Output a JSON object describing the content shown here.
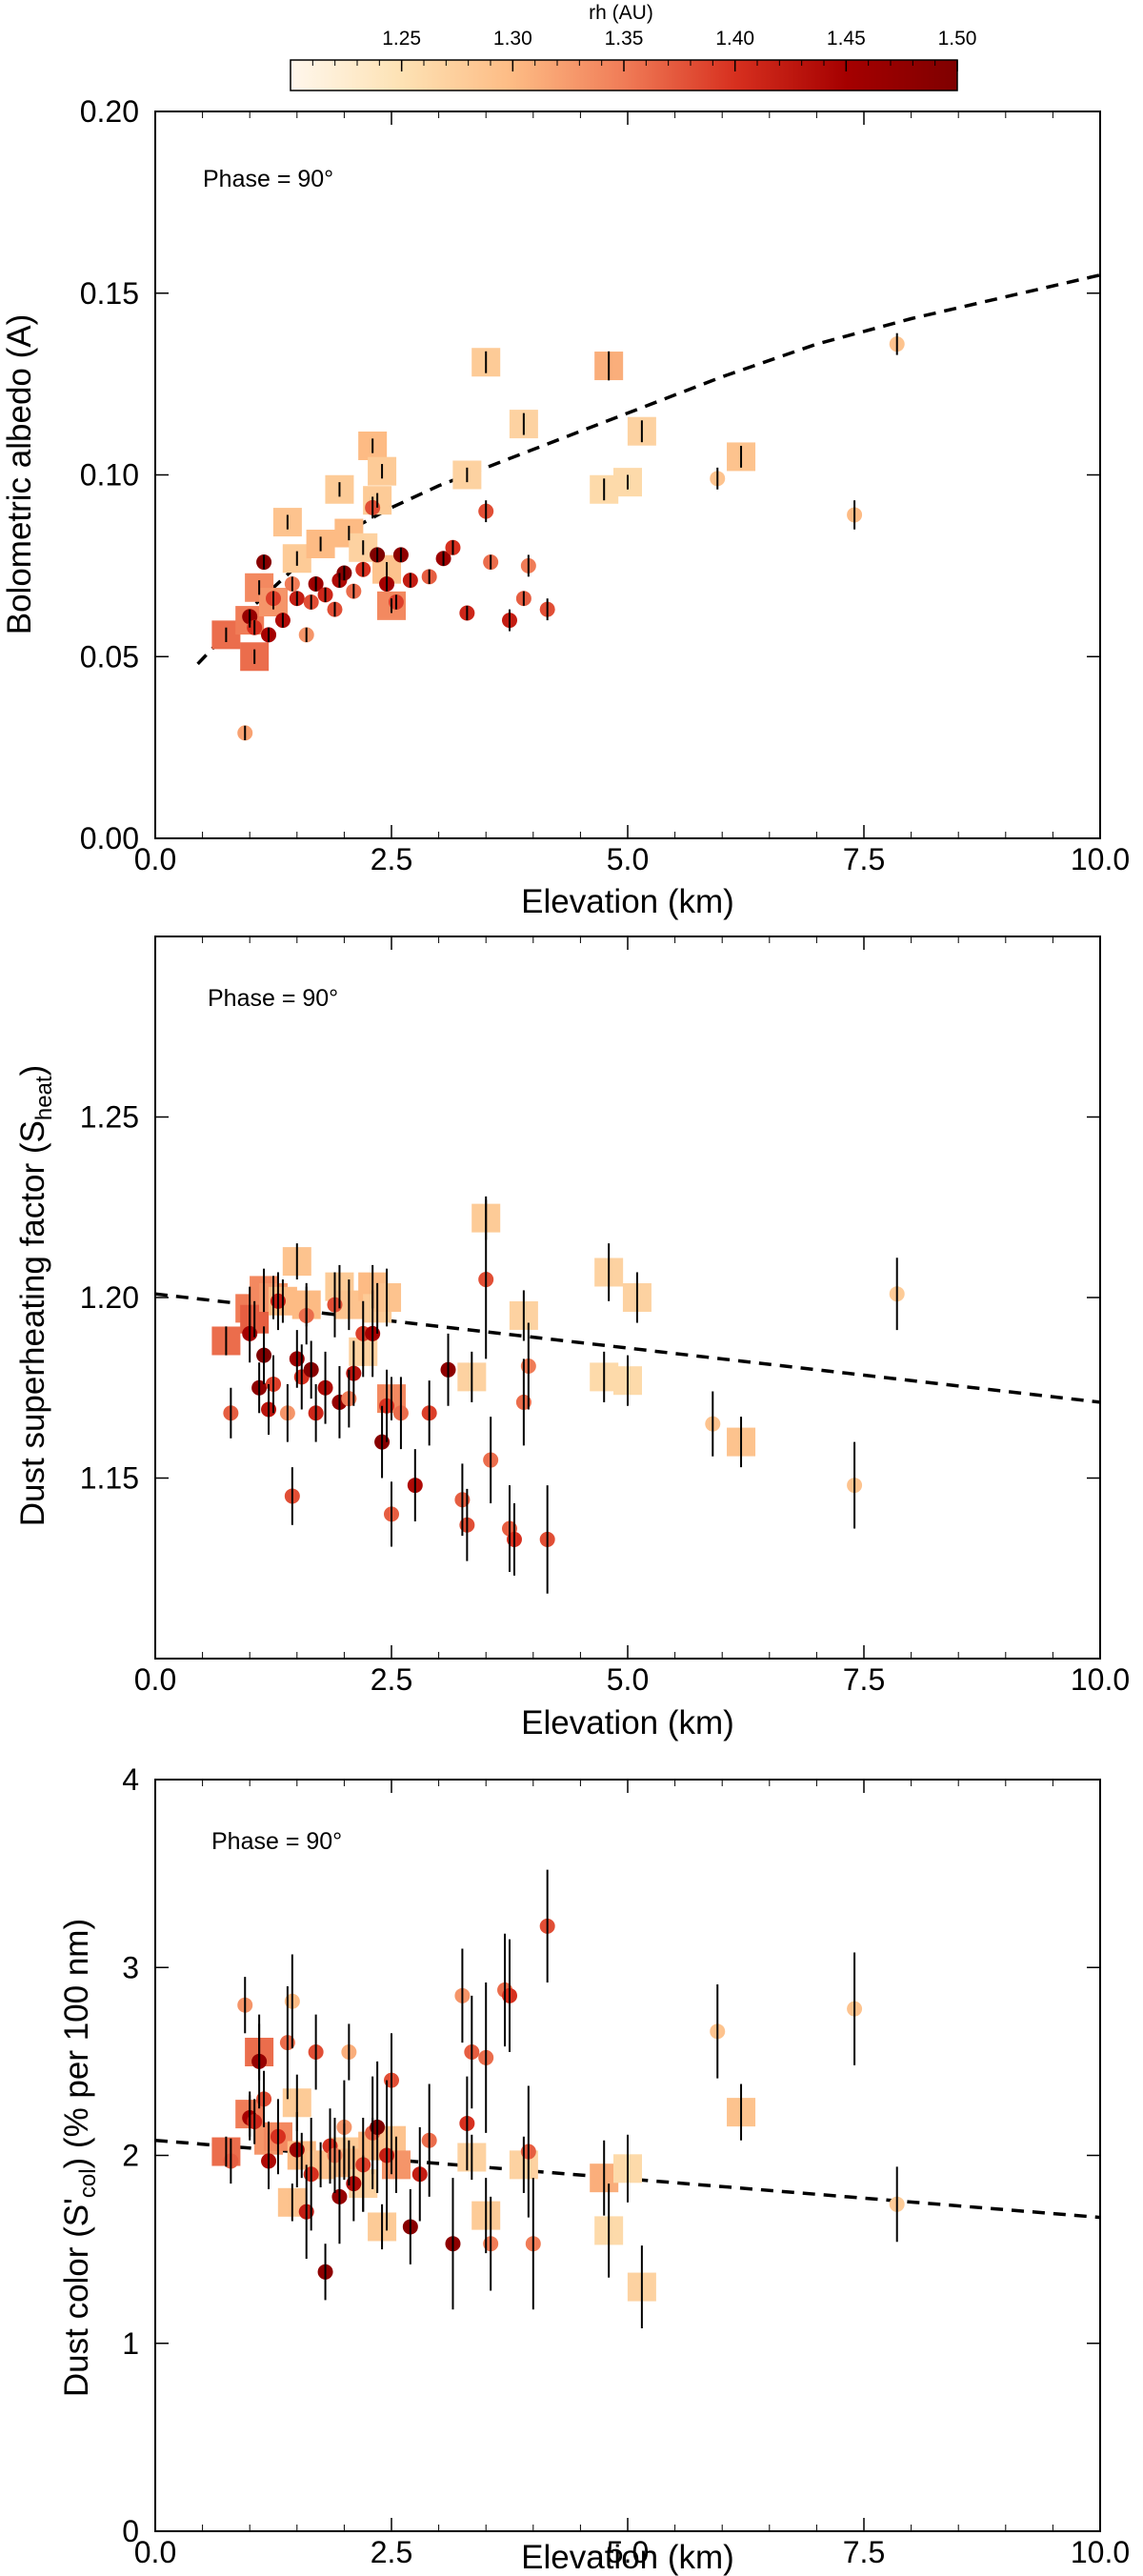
{
  "colorbar": {
    "title": "rh (AU)",
    "range": [
      1.2,
      1.5
    ],
    "ticks": [
      "1.25",
      "1.30",
      "1.35",
      "1.40",
      "1.45",
      "1.50"
    ],
    "stops": [
      "#fff7ec",
      "#fde2b4",
      "#fdbb84",
      "#f07c57",
      "#d7301f",
      "#a50000",
      "#7f0000"
    ]
  },
  "chart_data": [
    {
      "type": "scatter",
      "title": "",
      "annotation": "Phase = 90°",
      "xlabel": "Elevation  (km)",
      "ylabel": "Bolometric albedo (A)",
      "xlim": [
        0,
        10
      ],
      "ylim": [
        0,
        0.2
      ],
      "xticks": [
        "0.0",
        "2.5",
        "5.0",
        "7.5",
        "10.0"
      ],
      "yticks": [
        "0.00",
        "0.05",
        "0.10",
        "0.15",
        "0.20"
      ],
      "xticks_val": [
        0,
        2.5,
        5,
        7.5,
        10
      ],
      "yticks_val": [
        0,
        0.05,
        0.1,
        0.15,
        0.2
      ],
      "ylabel_sub": "",
      "ylabel_tail": "",
      "fit": {
        "x": [
          0.45,
          1.0,
          1.5,
          2.0,
          2.5,
          3.0,
          3.5,
          4.0,
          5.0,
          6.0,
          7.0,
          8.0,
          9.0,
          10.0
        ],
        "y": [
          0.048,
          0.063,
          0.075,
          0.084,
          0.091,
          0.097,
          0.102,
          0.107,
          0.117,
          0.127,
          0.136,
          0.143,
          0.149,
          0.155
        ]
      },
      "squares": {
        "x": [
          0.75,
          1.0,
          1.05,
          1.1,
          1.25,
          1.4,
          1.5,
          1.75,
          1.95,
          2.05,
          2.2,
          2.3,
          2.35,
          2.4,
          2.45,
          2.5,
          3.3,
          3.5,
          3.9,
          4.8,
          4.75,
          5.0,
          5.15,
          6.2
        ],
        "y": [
          0.056,
          0.06,
          0.05,
          0.069,
          0.065,
          0.087,
          0.077,
          0.081,
          0.096,
          0.084,
          0.08,
          0.108,
          0.093,
          0.101,
          0.074,
          0.064,
          0.1,
          0.131,
          0.114,
          0.13,
          0.096,
          0.098,
          0.112,
          0.105
        ],
        "rh": [
          1.36,
          1.35,
          1.36,
          1.34,
          1.33,
          1.29,
          1.28,
          1.3,
          1.28,
          1.3,
          1.27,
          1.3,
          1.28,
          1.28,
          1.29,
          1.34,
          1.27,
          1.28,
          1.27,
          1.31,
          1.26,
          1.26,
          1.27,
          1.29
        ],
        "err": [
          0.002,
          0.002,
          0.002,
          0.002,
          0.002,
          0.002,
          0.002,
          0.002,
          0.002,
          0.002,
          0.002,
          0.002,
          0.002,
          0.002,
          0.002,
          0.002,
          0.002,
          0.003,
          0.003,
          0.004,
          0.003,
          0.002,
          0.003,
          0.003
        ]
      },
      "circles": {
        "x": [
          0.95,
          1.0,
          1.05,
          1.15,
          1.25,
          1.2,
          1.35,
          1.45,
          1.5,
          1.6,
          1.65,
          1.7,
          1.8,
          1.9,
          1.95,
          2.0,
          2.1,
          2.2,
          2.3,
          2.35,
          2.45,
          2.55,
          2.6,
          2.7,
          2.9,
          3.05,
          3.15,
          3.3,
          3.5,
          3.55,
          3.75,
          3.9,
          3.95,
          4.15,
          5.95,
          7.4,
          7.85
        ],
        "y": [
          0.029,
          0.061,
          0.058,
          0.076,
          0.066,
          0.056,
          0.06,
          0.07,
          0.066,
          0.056,
          0.065,
          0.07,
          0.067,
          0.063,
          0.071,
          0.073,
          0.068,
          0.074,
          0.091,
          0.078,
          0.07,
          0.065,
          0.078,
          0.071,
          0.072,
          0.077,
          0.08,
          0.062,
          0.09,
          0.076,
          0.06,
          0.066,
          0.075,
          0.063,
          0.099,
          0.089,
          0.136
        ],
        "rh": [
          1.32,
          1.47,
          1.4,
          1.49,
          1.39,
          1.45,
          1.44,
          1.35,
          1.42,
          1.33,
          1.38,
          1.46,
          1.41,
          1.38,
          1.44,
          1.49,
          1.36,
          1.4,
          1.38,
          1.5,
          1.45,
          1.39,
          1.48,
          1.42,
          1.37,
          1.46,
          1.4,
          1.41,
          1.38,
          1.36,
          1.42,
          1.37,
          1.35,
          1.38,
          1.29,
          1.3,
          1.29
        ],
        "err": [
          0.002,
          0.002,
          0.002,
          0.002,
          0.002,
          0.002,
          0.002,
          0.002,
          0.002,
          0.002,
          0.002,
          0.002,
          0.002,
          0.002,
          0.002,
          0.002,
          0.002,
          0.002,
          0.003,
          0.002,
          0.002,
          0.002,
          0.002,
          0.002,
          0.002,
          0.002,
          0.002,
          0.002,
          0.003,
          0.002,
          0.003,
          0.002,
          0.003,
          0.003,
          0.003,
          0.004,
          0.003
        ]
      }
    },
    {
      "type": "scatter",
      "title": "",
      "annotation": "Phase = 90°",
      "xlabel": "Elevation  (km)",
      "ylabel": "Dust superheating factor (S",
      "ylabel_sub": "heat",
      "ylabel_tail": ")",
      "xlim": [
        0,
        10
      ],
      "ylim": [
        1.1,
        1.3
      ],
      "xticks": [
        "0.0",
        "2.5",
        "5.0",
        "7.5",
        "10.0"
      ],
      "yticks": [
        "1.15",
        "1.20",
        "1.25"
      ],
      "xticks_val": [
        0,
        2.5,
        5,
        7.5,
        10
      ],
      "yticks_val": [
        1.15,
        1.2,
        1.25
      ],
      "fit": {
        "x": [
          0.0,
          10.0
        ],
        "y": [
          1.201,
          1.171
        ]
      },
      "squares": {
        "x": [
          0.75,
          1.0,
          1.05,
          1.15,
          1.25,
          1.35,
          1.5,
          1.6,
          1.95,
          2.05,
          2.2,
          2.3,
          2.35,
          2.45,
          2.5,
          3.35,
          3.5,
          3.9,
          4.75,
          4.8,
          5.0,
          5.1,
          6.2
        ],
        "y": [
          1.188,
          1.197,
          1.194,
          1.202,
          1.2,
          1.199,
          1.21,
          1.198,
          1.203,
          1.198,
          1.185,
          1.203,
          1.197,
          1.2,
          1.172,
          1.178,
          1.222,
          1.195,
          1.178,
          1.207,
          1.177,
          1.2,
          1.16
        ],
        "rh": [
          1.36,
          1.35,
          1.37,
          1.34,
          1.33,
          1.3,
          1.29,
          1.3,
          1.28,
          1.29,
          1.27,
          1.3,
          1.28,
          1.29,
          1.34,
          1.27,
          1.28,
          1.27,
          1.26,
          1.27,
          1.26,
          1.27,
          1.29
        ],
        "err": [
          0.004,
          0.006,
          0.005,
          0.006,
          0.006,
          0.006,
          0.005,
          0.006,
          0.006,
          0.007,
          0.007,
          0.006,
          0.007,
          0.008,
          0.006,
          0.007,
          0.006,
          0.007,
          0.007,
          0.008,
          0.007,
          0.007,
          0.007
        ]
      },
      "circles": {
        "x": [
          0.8,
          1.0,
          1.1,
          1.15,
          1.2,
          1.25,
          1.3,
          1.4,
          1.45,
          1.5,
          1.55,
          1.6,
          1.65,
          1.7,
          1.8,
          1.9,
          1.95,
          2.05,
          2.1,
          2.2,
          2.3,
          2.4,
          2.45,
          2.5,
          2.6,
          2.75,
          2.9,
          3.1,
          3.25,
          3.3,
          3.5,
          3.55,
          3.75,
          3.8,
          3.95,
          3.9,
          4.15,
          5.9,
          7.4,
          7.85
        ],
        "y": [
          1.168,
          1.19,
          1.175,
          1.184,
          1.169,
          1.176,
          1.199,
          1.168,
          1.145,
          1.183,
          1.178,
          1.195,
          1.18,
          1.168,
          1.175,
          1.198,
          1.171,
          1.172,
          1.179,
          1.19,
          1.19,
          1.16,
          1.17,
          1.14,
          1.168,
          1.148,
          1.168,
          1.18,
          1.144,
          1.137,
          1.205,
          1.155,
          1.136,
          1.133,
          1.181,
          1.171,
          1.133,
          1.165,
          1.148,
          1.201
        ],
        "rh": [
          1.37,
          1.45,
          1.48,
          1.5,
          1.43,
          1.39,
          1.42,
          1.33,
          1.38,
          1.46,
          1.4,
          1.36,
          1.49,
          1.41,
          1.44,
          1.38,
          1.47,
          1.35,
          1.43,
          1.39,
          1.45,
          1.49,
          1.4,
          1.37,
          1.36,
          1.44,
          1.39,
          1.48,
          1.37,
          1.38,
          1.38,
          1.36,
          1.37,
          1.4,
          1.35,
          1.36,
          1.38,
          1.29,
          1.29,
          1.28
        ],
        "err": [
          0.007,
          0.008,
          0.007,
          0.008,
          0.007,
          0.008,
          0.008,
          0.008,
          0.008,
          0.008,
          0.009,
          0.008,
          0.008,
          0.008,
          0.01,
          0.009,
          0.01,
          0.008,
          0.009,
          0.009,
          0.012,
          0.01,
          0.01,
          0.009,
          0.01,
          0.01,
          0.009,
          0.01,
          0.01,
          0.01,
          0.022,
          0.012,
          0.012,
          0.01,
          0.012,
          0.012,
          0.015,
          0.009,
          0.012,
          0.01
        ]
      }
    },
    {
      "type": "scatter",
      "title": "",
      "annotation": "Phase = 90°",
      "xlabel": "Elevation  (km)",
      "ylabel": "Dust color (S'",
      "ylabel_sub": "col",
      "ylabel_tail": ") (% per 100 nm)",
      "xlim": [
        0,
        10
      ],
      "ylim": [
        0,
        4
      ],
      "xticks": [
        "0.0",
        "2.5",
        "5.0",
        "7.5",
        "10.0"
      ],
      "yticks": [
        "0",
        "1",
        "2",
        "3",
        "4"
      ],
      "xticks_val": [
        0,
        2.5,
        5,
        7.5,
        10
      ],
      "yticks_val": [
        0,
        1,
        2,
        3,
        4
      ],
      "fit": {
        "x": [
          0.0,
          10.0
        ],
        "y": [
          2.08,
          1.67
        ]
      },
      "squares": {
        "x": [
          0.75,
          1.0,
          1.1,
          1.2,
          1.3,
          1.45,
          1.5,
          1.55,
          1.75,
          2.0,
          2.05,
          2.2,
          2.3,
          2.4,
          2.5,
          2.55,
          3.35,
          3.5,
          3.9,
          4.75,
          4.8,
          5.0,
          5.15,
          6.2
        ],
        "y": [
          2.02,
          2.22,
          2.55,
          2.08,
          2.1,
          1.75,
          2.28,
          2.0,
          1.95,
          2.02,
          1.96,
          1.85,
          2.05,
          1.62,
          2.08,
          1.95,
          1.99,
          1.68,
          1.95,
          1.88,
          1.6,
          1.93,
          1.3,
          2.23
        ],
        "rh": [
          1.36,
          1.35,
          1.36,
          1.33,
          1.34,
          1.29,
          1.28,
          1.3,
          1.29,
          1.28,
          1.3,
          1.27,
          1.3,
          1.28,
          1.29,
          1.33,
          1.27,
          1.28,
          1.27,
          1.31,
          1.26,
          1.26,
          1.27,
          1.29
        ],
        "err": [
          0.08,
          0.12,
          0.15,
          0.1,
          0.12,
          0.1,
          0.15,
          0.12,
          0.12,
          0.15,
          0.12,
          0.15,
          0.15,
          0.12,
          0.18,
          0.15,
          0.12,
          0.2,
          0.15,
          0.2,
          0.25,
          0.18,
          0.22,
          0.15
        ]
      },
      "circles": {
        "x": [
          0.8,
          0.95,
          1.0,
          1.05,
          1.1,
          1.15,
          1.2,
          1.3,
          1.4,
          1.45,
          1.5,
          1.6,
          1.65,
          1.7,
          1.8,
          1.85,
          1.9,
          1.95,
          2.0,
          2.05,
          2.1,
          2.2,
          2.3,
          2.35,
          2.45,
          2.5,
          2.7,
          2.8,
          2.9,
          3.15,
          3.25,
          3.3,
          3.35,
          3.5,
          3.55,
          3.7,
          3.75,
          3.95,
          4.0,
          4.15,
          5.95,
          7.4,
          7.85
        ],
        "y": [
          1.97,
          2.8,
          2.2,
          2.18,
          2.5,
          2.3,
          1.97,
          2.1,
          2.6,
          2.82,
          2.03,
          1.7,
          1.9,
          2.55,
          1.38,
          2.05,
          2.0,
          1.78,
          2.15,
          2.55,
          1.85,
          1.95,
          2.12,
          2.15,
          2.0,
          2.4,
          1.62,
          1.9,
          2.08,
          1.53,
          2.85,
          2.17,
          2.55,
          2.52,
          1.53,
          2.88,
          2.85,
          2.02,
          1.53,
          3.22,
          2.66,
          2.78,
          1.74
        ],
        "rh": [
          1.37,
          1.33,
          1.45,
          1.41,
          1.47,
          1.38,
          1.44,
          1.4,
          1.36,
          1.3,
          1.46,
          1.42,
          1.4,
          1.38,
          1.48,
          1.4,
          1.35,
          1.47,
          1.33,
          1.31,
          1.44,
          1.39,
          1.37,
          1.5,
          1.42,
          1.38,
          1.49,
          1.42,
          1.36,
          1.48,
          1.33,
          1.4,
          1.37,
          1.36,
          1.35,
          1.36,
          1.4,
          1.37,
          1.35,
          1.38,
          1.29,
          1.29,
          1.28
        ],
        "err": [
          0.12,
          0.15,
          0.12,
          0.12,
          0.25,
          0.15,
          0.15,
          0.2,
          0.3,
          0.25,
          0.2,
          0.25,
          0.3,
          0.2,
          0.15,
          0.2,
          0.2,
          0.25,
          0.25,
          0.15,
          0.2,
          0.25,
          0.3,
          0.35,
          0.4,
          0.25,
          0.2,
          0.25,
          0.3,
          0.35,
          0.25,
          0.25,
          0.3,
          0.4,
          0.25,
          0.3,
          0.3,
          0.35,
          0.35,
          0.3,
          0.25,
          0.3,
          0.2
        ]
      }
    }
  ]
}
